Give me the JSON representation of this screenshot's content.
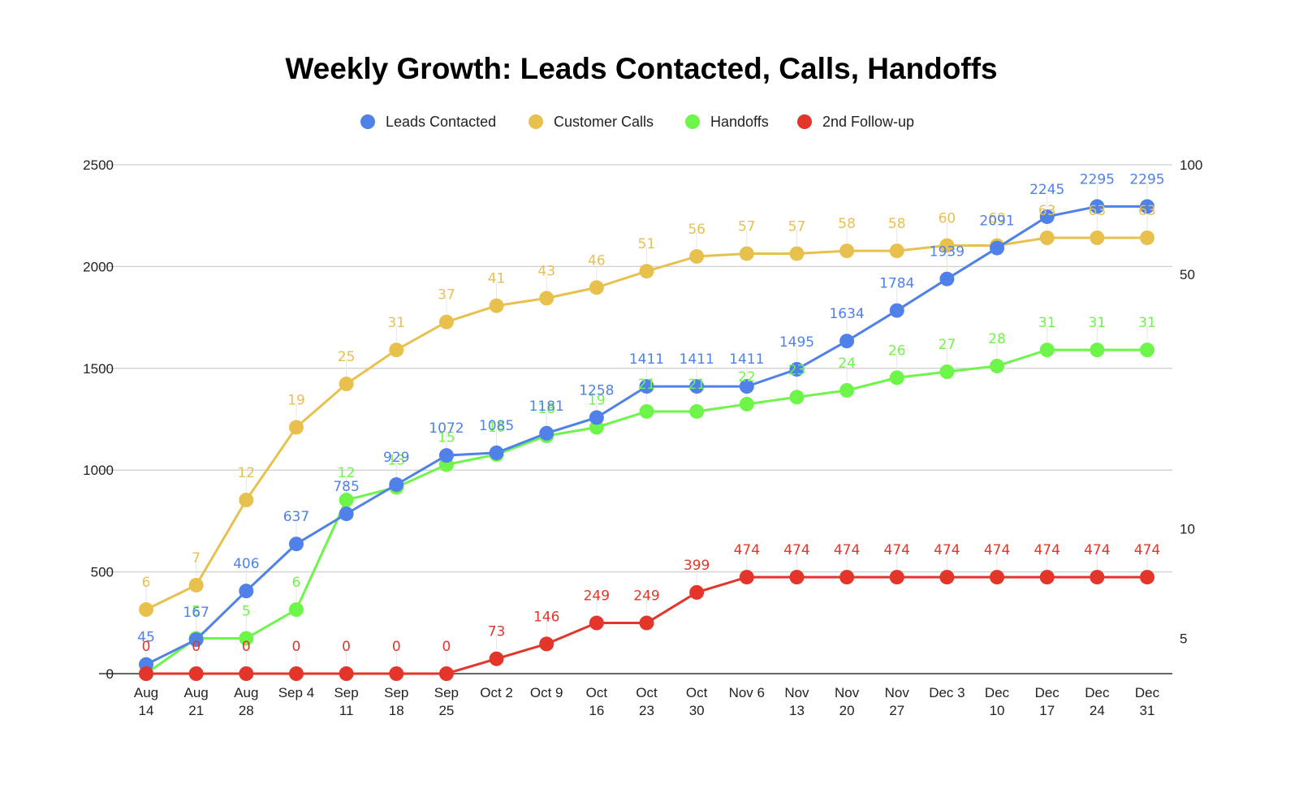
{
  "chart_data": {
    "type": "line",
    "title": "Weekly Growth: Leads Contacted, Calls, Handoffs",
    "xlabel": "",
    "ylabel": "",
    "legend_position": "top",
    "grid": true,
    "categories": [
      [
        "Aug",
        "14"
      ],
      [
        "Aug",
        "21"
      ],
      [
        "Aug",
        "28"
      ],
      [
        "Sep 4"
      ],
      [
        "Sep",
        "11"
      ],
      [
        "Sep",
        "18"
      ],
      [
        "Sep",
        "25"
      ],
      [
        "Oct 2"
      ],
      [
        "Oct 9"
      ],
      [
        "Oct",
        "16"
      ],
      [
        "Oct",
        "23"
      ],
      [
        "Oct",
        "30"
      ],
      [
        "Nov 6"
      ],
      [
        "Nov",
        "13"
      ],
      [
        "Nov",
        "20"
      ],
      [
        "Nov",
        "27"
      ],
      [
        "Dec 3"
      ],
      [
        "Dec",
        "10"
      ],
      [
        "Dec",
        "17"
      ],
      [
        "Dec",
        "24"
      ],
      [
        "Dec",
        "31"
      ]
    ],
    "left_axis": {
      "scale": "linear",
      "ylim": [
        0,
        2500
      ],
      "ticks": [
        "0",
        "500",
        "1000",
        "1500",
        "2000",
        "2500"
      ],
      "tick_values": [
        0,
        500,
        1000,
        1500,
        2000,
        2500
      ]
    },
    "right_axis": {
      "scale": "log",
      "ylim": [
        4,
        100
      ],
      "ticks": [
        "5",
        "10",
        "50",
        "100"
      ],
      "tick_values": [
        5,
        10,
        50,
        100
      ]
    },
    "series": [
      {
        "name": "Leads Contacted",
        "axis": "left",
        "color": "#4f81e8",
        "values": [
          45,
          167,
          406,
          637,
          785,
          929,
          1072,
          1085,
          1181,
          1258,
          1411,
          1411,
          1411,
          1495,
          1634,
          1784,
          1939,
          2091,
          2245,
          2295,
          2295
        ]
      },
      {
        "name": "Customer Calls",
        "axis": "right",
        "color": "#e8c04e",
        "values": [
          6,
          7,
          12,
          19,
          25,
          31,
          37,
          41,
          43,
          46,
          51,
          56,
          57,
          57,
          58,
          58,
          60,
          60,
          63,
          63,
          63
        ]
      },
      {
        "name": "Handoffs",
        "axis": "right",
        "color": "#6ef54a",
        "values": [
          4,
          5,
          5,
          6,
          12,
          13,
          15,
          16,
          18,
          19,
          21,
          21,
          22,
          23,
          24,
          26,
          27,
          28,
          31,
          31,
          31
        ]
      },
      {
        "name": "2nd Follow-up",
        "axis": "left",
        "color": "#e3352a",
        "values": [
          0,
          0,
          0,
          0,
          0,
          0,
          0,
          73,
          146,
          249,
          249,
          399,
          474,
          474,
          474,
          474,
          474,
          474,
          474,
          474,
          474
        ]
      }
    ],
    "hidden_labels": {
      "Handoffs": [
        0
      ]
    }
  }
}
